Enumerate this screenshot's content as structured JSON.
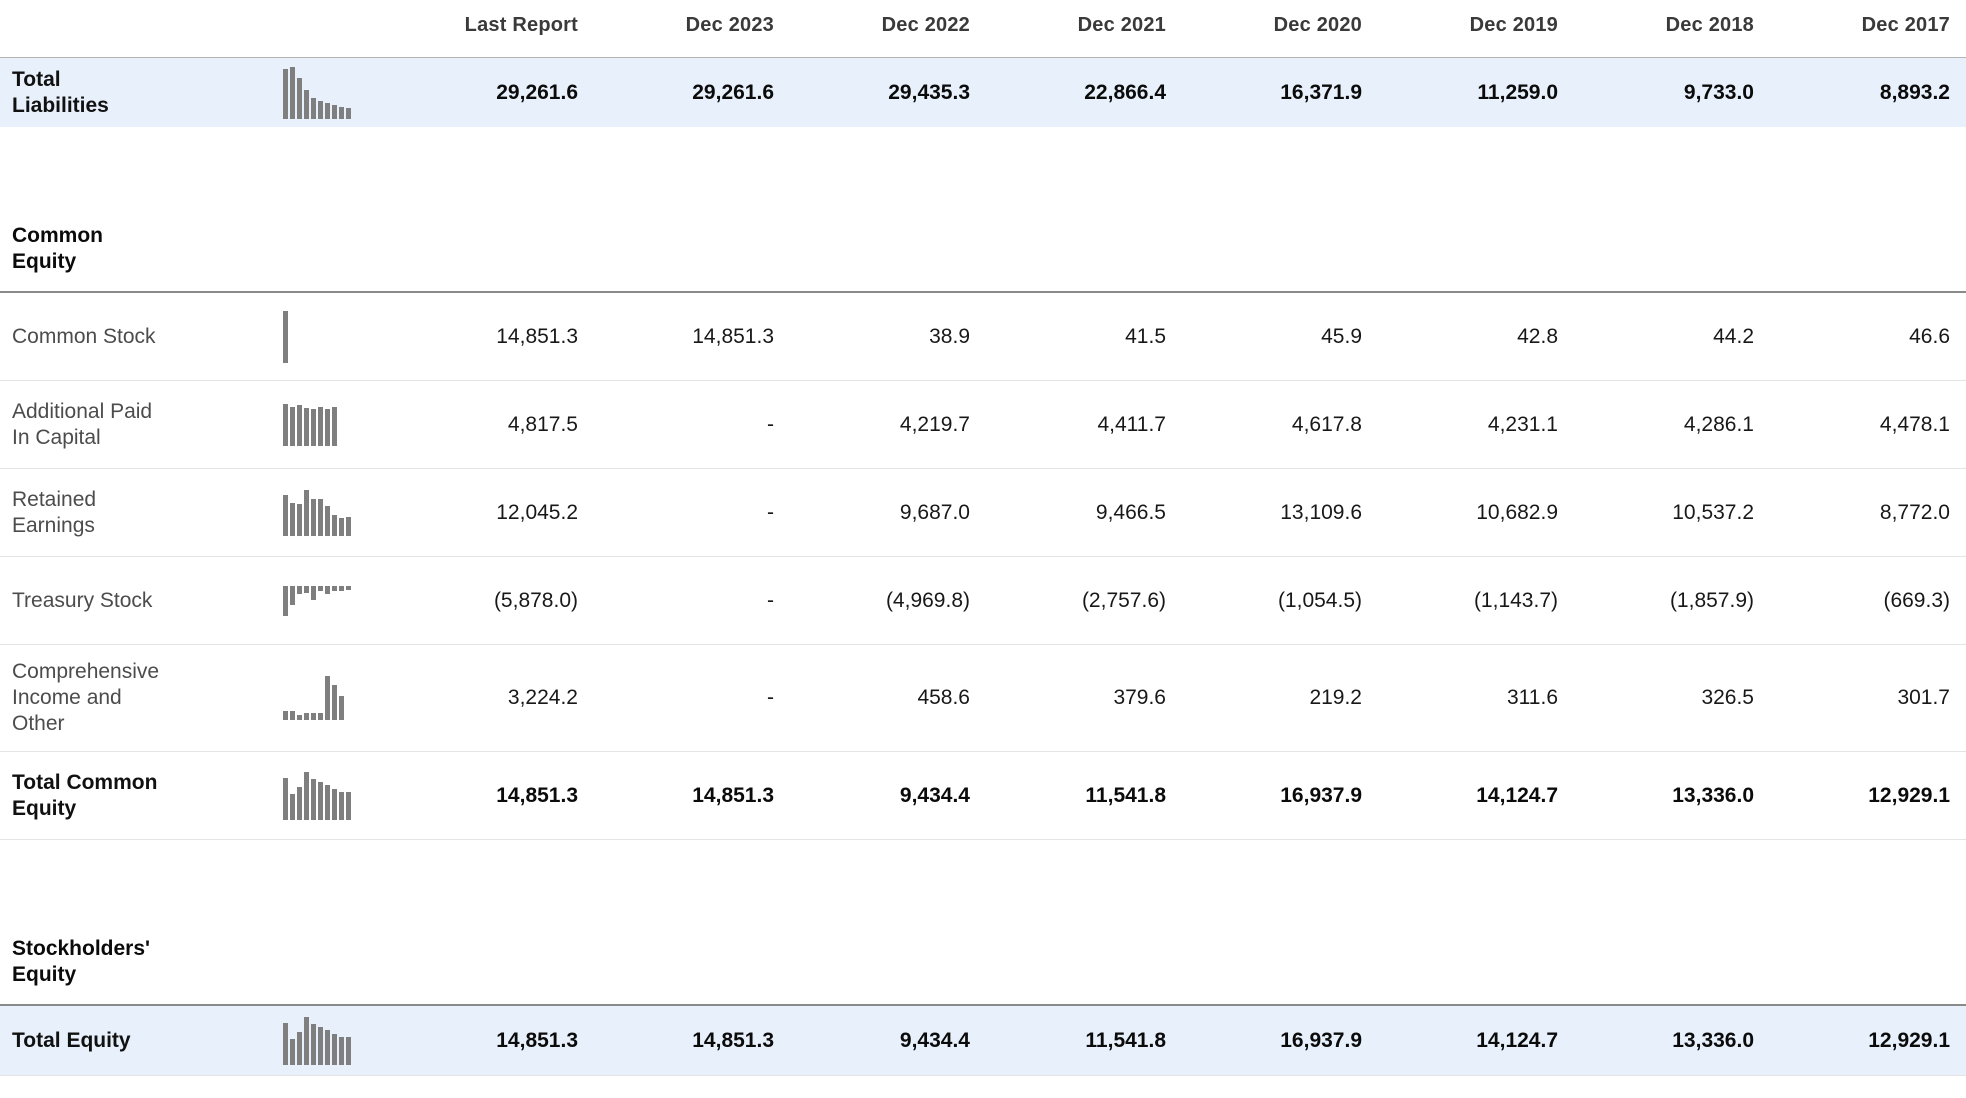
{
  "colors": {
    "row_highlight_bg": "#e8f1fb",
    "sparkline_bar": "#7f7f7f",
    "section_border": "#8a8a8a"
  },
  "table": {
    "columns": [
      "Last Report",
      "Dec 2023",
      "Dec 2022",
      "Dec 2021",
      "Dec 2020",
      "Dec 2019",
      "Dec 2018",
      "Dec 2017"
    ],
    "rows": [
      {
        "kind": "data",
        "label": "Total\nLiabilities",
        "bold": true,
        "highlight": true,
        "sparkline": {
          "type": "bar",
          "values": [
            0.97,
            1.0,
            0.78,
            0.56,
            0.4,
            0.35,
            0.3,
            0.27,
            0.24,
            0.22
          ],
          "max_height": 52,
          "direction": "up"
        },
        "values": [
          "29,261.6",
          "29,261.6",
          "29,435.3",
          "22,866.4",
          "16,371.9",
          "11,259.0",
          "9,733.0",
          "8,893.2"
        ]
      },
      {
        "kind": "section",
        "label": "Common\nEquity"
      },
      {
        "kind": "data",
        "label": "Common Stock",
        "bold": false,
        "highlight": false,
        "sparkline": {
          "type": "bar",
          "values": [
            1.0
          ],
          "max_height": 52,
          "direction": "up"
        },
        "values": [
          "14,851.3",
          "14,851.3",
          "38.9",
          "41.5",
          "45.9",
          "42.8",
          "44.2",
          "46.6"
        ]
      },
      {
        "kind": "data",
        "label": "Additional Paid\nIn Capital",
        "bold": false,
        "highlight": false,
        "sparkline": {
          "type": "bar",
          "values": [
            1.0,
            0.93,
            0.98,
            0.9,
            0.88,
            0.94,
            0.89,
            0.92
          ],
          "max_height": 42,
          "direction": "up"
        },
        "values": [
          "4,817.5",
          "-",
          "4,219.7",
          "4,411.7",
          "4,617.8",
          "4,231.1",
          "4,286.1",
          "4,478.1"
        ]
      },
      {
        "kind": "data",
        "label": "Retained\nEarnings",
        "bold": false,
        "highlight": false,
        "sparkline": {
          "type": "bar",
          "values": [
            0.9,
            0.72,
            0.7,
            1.0,
            0.81,
            0.8,
            0.66,
            0.45,
            0.4,
            0.42
          ],
          "max_height": 46,
          "direction": "up"
        },
        "values": [
          "12,045.2",
          "-",
          "9,687.0",
          "9,466.5",
          "13,109.6",
          "10,682.9",
          "10,537.2",
          "8,772.0"
        ]
      },
      {
        "kind": "data",
        "label": "Treasury Stock",
        "bold": false,
        "highlight": false,
        "sparkline": {
          "type": "bar",
          "values": [
            -1.0,
            -0.62,
            -0.25,
            -0.22,
            -0.45,
            -0.18,
            -0.25,
            -0.15,
            -0.18,
            -0.14
          ],
          "max_height": 30,
          "direction": "down"
        },
        "values": [
          "(5,878.0)",
          "-",
          "(4,969.8)",
          "(2,757.6)",
          "(1,054.5)",
          "(1,143.7)",
          "(1,857.9)",
          "(669.3)"
        ]
      },
      {
        "kind": "data",
        "label": "Comprehensive\nIncome and\nOther",
        "bold": false,
        "highlight": false,
        "sparkline": {
          "type": "bar",
          "values": [
            0.2,
            0.2,
            0.12,
            0.15,
            0.15,
            0.15,
            1.0,
            0.8,
            0.55
          ],
          "max_height": 44,
          "direction": "up"
        },
        "values": [
          "3,224.2",
          "-",
          "458.6",
          "379.6",
          "219.2",
          "311.6",
          "326.5",
          "301.7"
        ]
      },
      {
        "kind": "data",
        "label": "Total Common\nEquity",
        "bold": true,
        "highlight": false,
        "sparkline": {
          "type": "bar",
          "values": [
            0.88,
            0.55,
            0.68,
            1.0,
            0.85,
            0.79,
            0.72,
            0.64,
            0.58,
            0.58
          ],
          "max_height": 48,
          "direction": "up"
        },
        "values": [
          "14,851.3",
          "14,851.3",
          "9,434.4",
          "11,541.8",
          "16,937.9",
          "14,124.7",
          "13,336.0",
          "12,929.1"
        ]
      },
      {
        "kind": "section",
        "label": "Stockholders'\nEquity"
      },
      {
        "kind": "data",
        "label": "Total Equity",
        "bold": true,
        "highlight": true,
        "sparkline": {
          "type": "bar",
          "values": [
            0.88,
            0.55,
            0.68,
            1.0,
            0.85,
            0.79,
            0.72,
            0.64,
            0.58,
            0.58
          ],
          "max_height": 48,
          "direction": "up"
        },
        "values": [
          "14,851.3",
          "14,851.3",
          "9,434.4",
          "11,541.8",
          "16,937.9",
          "14,124.7",
          "13,336.0",
          "12,929.1"
        ]
      }
    ]
  }
}
